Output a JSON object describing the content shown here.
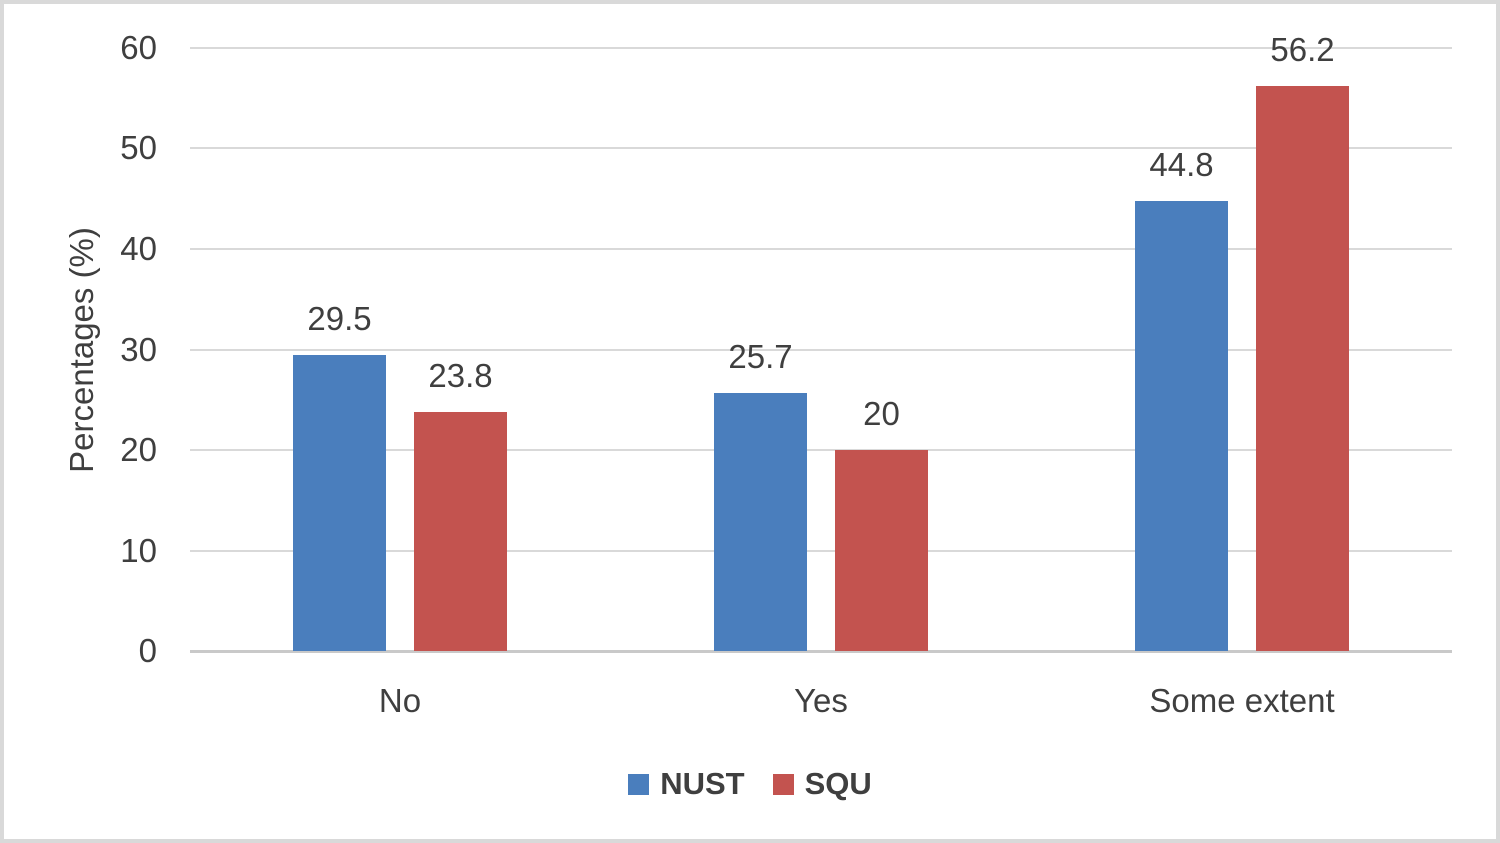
{
  "figure": {
    "background": "#ffffff",
    "border_color": "#d9d9d9"
  },
  "chart_data": {
    "type": "bar",
    "title": "",
    "categories": [
      "No",
      "Yes",
      "Some extent"
    ],
    "series": [
      {
        "name": "NUST",
        "color": "#4a7ebd",
        "values": [
          29.5,
          25.7,
          44.8
        ],
        "labels": [
          "29.5",
          "25.7",
          "44.8"
        ]
      },
      {
        "name": "SQU",
        "color": "#c3534f",
        "values": [
          23.8,
          20,
          56.2
        ],
        "labels": [
          "23.8",
          "20",
          "56.2"
        ]
      }
    ],
    "xlabel": "",
    "ylabel": "Percentages (%)",
    "ylim": [
      0,
      60
    ],
    "yticks": [
      "0",
      "10",
      "20",
      "30",
      "40",
      "50",
      "60"
    ],
    "grid": true,
    "legend_position": "bottom",
    "colors": {
      "grid": "#d9d9d9",
      "axis": "#c9c9c9",
      "text": "#3f3f3f"
    }
  }
}
